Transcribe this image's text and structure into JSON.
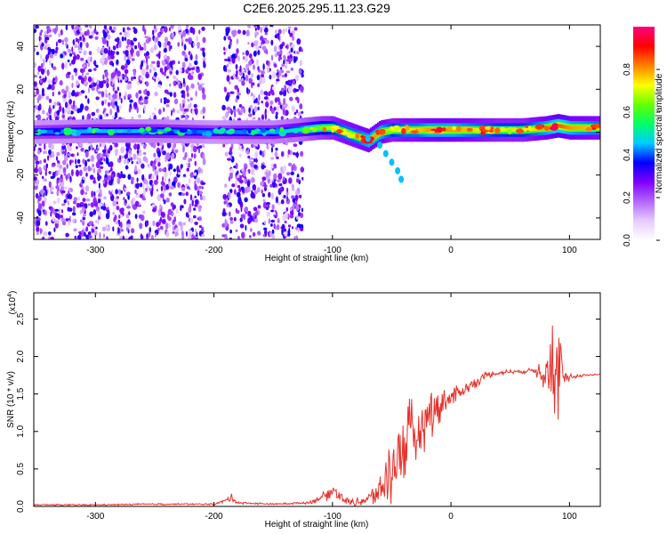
{
  "title": "C2E6.2025.295.11.23.G29",
  "chart_data": [
    {
      "type": "heatmap",
      "xlabel": "Height of straight line (km)",
      "ylabel": "Frequency (Hz)",
      "xlim": [
        -352,
        126
      ],
      "ylim": [
        -50,
        50
      ],
      "xticks": [
        "-300",
        "-200",
        "-100",
        "0",
        "100"
      ],
      "xtick_values": [
        -300,
        -200,
        -100,
        0,
        100
      ],
      "yticks": [
        "-40",
        "-20",
        "0",
        "20",
        "40"
      ],
      "ytick_values": [
        -40,
        -20,
        0,
        20,
        40
      ],
      "colorbar": {
        "label": "Normalized spectral amplitude",
        "range": [
          0,
          1
        ],
        "ticks": [
          "0.0",
          "0.2",
          "0.4",
          "0.6",
          "0.8"
        ],
        "tick_values": [
          0.0,
          0.2,
          0.4,
          0.6,
          0.8
        ],
        "colors": [
          "#ffffff",
          "#e6ccff",
          "#b266ff",
          "#7f00ff",
          "#0000ff",
          "#00ccff",
          "#00ff66",
          "#66ff00",
          "#ffff00",
          "#ff8000",
          "#ff0000",
          "#ff0080"
        ]
      },
      "noise_region": {
        "x": [
          -352,
          -125
        ],
        "y": [
          -50,
          50
        ]
      },
      "ridge": {
        "x": [
          -352,
          -300,
          -250,
          -200,
          -150,
          -130,
          -110,
          -100,
          -90,
          -80,
          -70,
          -60,
          -50,
          -40,
          -30,
          -20,
          -10,
          0,
          20,
          40,
          60,
          80,
          90,
          100,
          126
        ],
        "y": [
          0,
          0.5,
          0.5,
          0,
          0,
          1,
          2,
          2,
          0,
          -2,
          -4,
          0,
          1,
          1,
          1,
          1,
          1,
          1,
          1,
          1,
          1,
          2,
          3,
          2,
          2
        ],
        "amplitude": [
          0.4,
          0.45,
          0.45,
          0.4,
          0.45,
          0.5,
          0.65,
          0.7,
          0.75,
          0.75,
          0.8,
          0.8,
          0.7,
          0.75,
          0.75,
          0.8,
          0.8,
          0.8,
          0.75,
          0.7,
          0.7,
          0.8,
          0.85,
          0.8,
          0.75
        ]
      },
      "branch": {
        "x": [
          -70,
          -60,
          -55,
          -50,
          -45,
          -42
        ],
        "y": [
          -3,
          -6,
          -10,
          -14,
          -18,
          -22
        ]
      }
    },
    {
      "type": "line",
      "xlabel": "Height of straight line (km)",
      "ylabel": "SNR (10 * v/v)",
      "yscale_label": "(x10",
      "yscale_exp": "4",
      "xlim": [
        -352,
        126
      ],
      "ylim": [
        0,
        2.85
      ],
      "xticks": [
        "-300",
        "-200",
        "-100",
        "0",
        "100"
      ],
      "xtick_values": [
        -300,
        -200,
        -100,
        0,
        100
      ],
      "yticks": [
        "0.0",
        "0.5",
        "1.0",
        "1.5",
        "2.0",
        "2.5"
      ],
      "ytick_values": [
        0.0,
        0.5,
        1.0,
        1.5,
        2.0,
        2.5
      ],
      "color": "#e8302a",
      "series": [
        {
          "x": [
            -352,
            -300,
            -250,
            -200,
            -190,
            -185,
            -180,
            -150,
            -120,
            -105,
            -100,
            -95,
            -90,
            -80,
            -70,
            -60,
            -55,
            -50,
            -45,
            -40,
            -35,
            -30,
            -25,
            -20,
            -15,
            -10,
            -5,
            0,
            10,
            20,
            30,
            40,
            50,
            60,
            70,
            80,
            85,
            88,
            90,
            92,
            95,
            100,
            110,
            126
          ],
          "y": [
            0.02,
            0.02,
            0.03,
            0.03,
            0.08,
            0.12,
            0.05,
            0.03,
            0.05,
            0.15,
            0.22,
            0.18,
            0.08,
            0.05,
            0.1,
            0.2,
            0.35,
            0.5,
            0.7,
            0.8,
            0.9,
            0.95,
            1.05,
            1.2,
            1.3,
            1.35,
            1.4,
            1.45,
            1.55,
            1.65,
            1.75,
            1.78,
            1.8,
            1.8,
            1.82,
            1.85,
            1.9,
            1.2,
            1.75,
            1.9,
            1.7,
            1.72,
            1.75,
            1.76
          ],
          "noise_amplitude": [
            0.01,
            0.01,
            0.01,
            0.01,
            0.03,
            0.05,
            0.02,
            0.01,
            0.02,
            0.08,
            0.12,
            0.1,
            0.05,
            0.05,
            0.1,
            0.25,
            0.4,
            0.55,
            0.6,
            0.6,
            0.55,
            0.5,
            0.45,
            0.4,
            0.35,
            0.3,
            0.25,
            0.15,
            0.1,
            0.08,
            0.05,
            0.04,
            0.03,
            0.03,
            0.03,
            0.4,
            0.9,
            0.9,
            0.9,
            0.6,
            0.2,
            0.05,
            0.02,
            0.02
          ]
        }
      ]
    }
  ]
}
